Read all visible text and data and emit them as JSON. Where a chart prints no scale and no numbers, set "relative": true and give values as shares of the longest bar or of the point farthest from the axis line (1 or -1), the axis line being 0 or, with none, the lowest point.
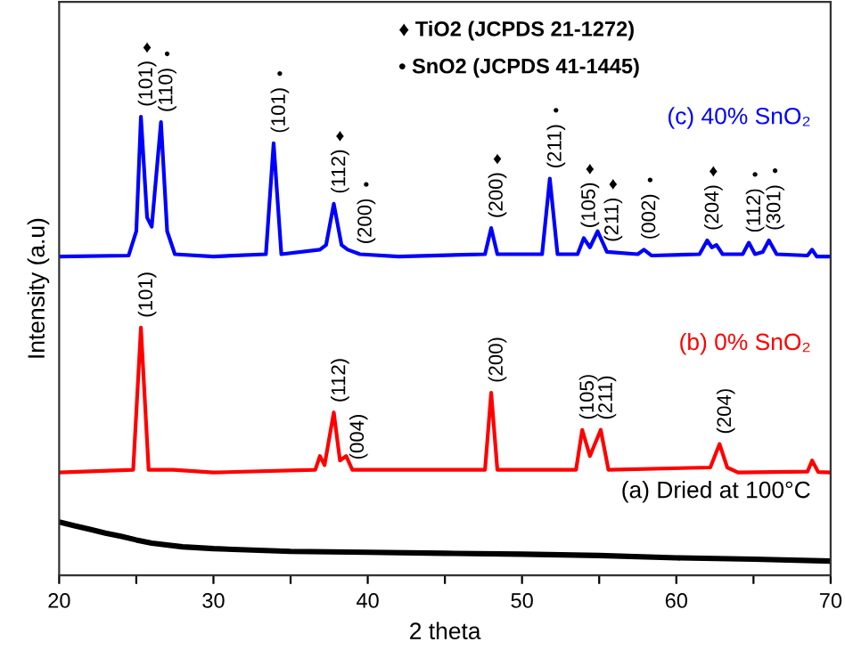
{
  "chart_data": {
    "type": "line",
    "relative": true,
    "xlabel": "2 theta",
    "ylabel": "Intensity (a.u)",
    "xlim": [
      20,
      70
    ],
    "xticks": [
      20,
      {
        "value": 25,
        "label": null
      },
      30,
      {
        "value": 35,
        "label": null
      },
      40,
      {
        "value": 45,
        "label": null
      },
      50,
      {
        "value": 55,
        "label": null
      },
      60,
      {
        "value": 65,
        "label": null
      },
      70
    ],
    "grid": false,
    "legend": false,
    "marker": "none",
    "line_style": "solid",
    "series": [
      {
        "name": "(a) Dried at 100°C",
        "color": "#000000",
        "x": [
          20,
          21,
          22,
          23,
          24,
          25,
          26,
          28,
          30,
          35,
          40,
          45,
          50,
          55,
          60,
          65,
          70
        ],
        "values": [
          0.116,
          0.108,
          0.1,
          0.092,
          0.085,
          0.077,
          0.07,
          0.062,
          0.058,
          0.052,
          0.05,
          0.048,
          0.046,
          0.043,
          0.038,
          0.035,
          0.031
        ]
      },
      {
        "name": "(b) 0% SnO₂",
        "color": "#ff0000",
        "x": [
          20,
          24.8,
          25.3,
          25.8,
          27.4,
          30,
          36.6,
          36.9,
          37.2,
          37.8,
          38.2,
          38.6,
          39.0,
          47.6,
          48.0,
          48.4,
          53.5,
          53.9,
          54.4,
          55.1,
          55.6,
          62.2,
          62.8,
          63.3,
          64,
          68.5,
          68.8,
          69.2,
          70
        ],
        "values": [
          0.224,
          0.23,
          0.54,
          0.23,
          0.23,
          0.224,
          0.23,
          0.26,
          0.24,
          0.355,
          0.25,
          0.26,
          0.23,
          0.23,
          0.398,
          0.23,
          0.23,
          0.317,
          0.26,
          0.317,
          0.23,
          0.235,
          0.286,
          0.235,
          0.224,
          0.226,
          0.25,
          0.225,
          0.224
        ]
      },
      {
        "name": "(c) 40% SnO₂",
        "color": "#0000ff",
        "x": [
          20,
          24.5,
          25.0,
          25.3,
          25.7,
          26.0,
          26.6,
          27.0,
          27.5,
          30,
          33.4,
          33.9,
          34.4,
          36.9,
          37.3,
          37.8,
          38.3,
          38.7,
          39.5,
          42,
          47.6,
          48.0,
          48.4,
          51.3,
          51.8,
          52.3,
          53.6,
          54.0,
          54.4,
          54.9,
          55.5,
          57.5,
          57.9,
          58.4,
          61.5,
          62.0,
          62.3,
          62.6,
          63.0,
          64.3,
          64.7,
          65.1,
          65.6,
          66.0,
          66.5,
          68.5,
          68.8,
          69.1,
          70
        ],
        "values": [
          0.695,
          0.697,
          0.75,
          1.0,
          0.78,
          0.76,
          0.988,
          0.75,
          0.7,
          0.695,
          0.7,
          0.942,
          0.7,
          0.71,
          0.72,
          0.81,
          0.72,
          0.71,
          0.7,
          0.695,
          0.7,
          0.757,
          0.7,
          0.7,
          0.865,
          0.7,
          0.7,
          0.735,
          0.715,
          0.75,
          0.705,
          0.7,
          0.71,
          0.697,
          0.7,
          0.73,
          0.715,
          0.72,
          0.7,
          0.7,
          0.725,
          0.7,
          0.705,
          0.73,
          0.7,
          0.697,
          0.71,
          0.695,
          0.695
        ]
      }
    ],
    "annotations": [
      "♦ TiO2 (JCPDS 21-1272)",
      "• SnO2 (JCPDS 41-1445)",
      {
        "text": "(101)",
        "x": 25.3,
        "y": 1.0
      },
      "♦",
      {
        "text": "(110)",
        "x": 26.6,
        "y": 0.988
      },
      "•",
      {
        "text": "(101)",
        "x": 33.9,
        "y": 0.942
      },
      "•",
      {
        "text": "(112)",
        "x": 37.8,
        "y": 0.81
      },
      "♦",
      {
        "text": "(200)",
        "x": 39.5,
        "y": 0.7
      },
      "•",
      {
        "text": "(200)",
        "x": 48.0,
        "y": 0.757
      },
      "♦",
      {
        "text": "(211)",
        "x": 51.8,
        "y": 0.865
      },
      "•",
      {
        "text": "(105)",
        "x": 54.0,
        "y": 0.735
      },
      "♦",
      {
        "text": "(211)",
        "x": 55.5,
        "y": 0.705
      },
      "♦",
      {
        "text": "(002)",
        "x": 57.9,
        "y": 0.71
      },
      "•",
      {
        "text": "(204)",
        "x": 62.0,
        "y": 0.73
      },
      "♦",
      {
        "text": "(112)",
        "x": 64.7,
        "y": 0.725
      },
      "•",
      {
        "text": "(301)",
        "x": 66.0,
        "y": 0.73
      },
      "•",
      {
        "text": "(101)",
        "x": 25.3,
        "y": 0.54
      },
      {
        "text": "(112)",
        "x": 37.8,
        "y": 0.355
      },
      {
        "text": "(004)",
        "x": 39.0,
        "y": 0.23
      },
      {
        "text": "(200)",
        "x": 48.0,
        "y": 0.398
      },
      {
        "text": "(105)",
        "x": 53.9,
        "y": 0.317
      },
      {
        "text": "(211)",
        "x": 55.1,
        "y": 0.317
      },
      {
        "text": "(204)",
        "x": 62.8,
        "y": 0.286
      }
    ]
  }
}
